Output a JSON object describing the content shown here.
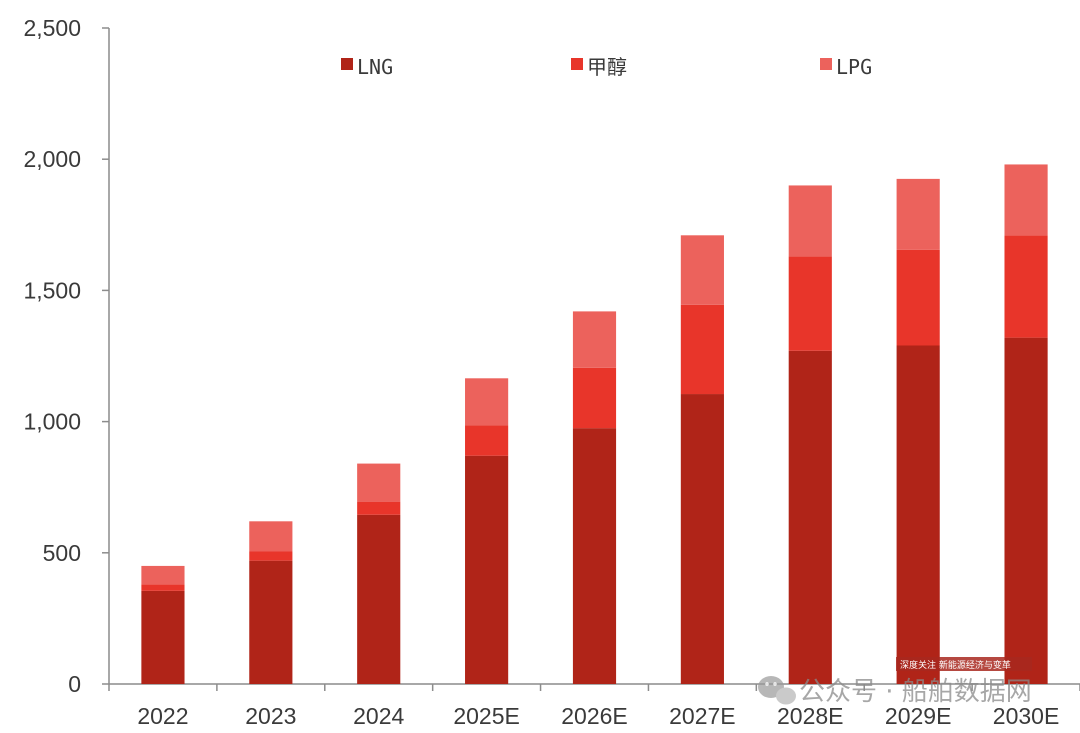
{
  "chart_data": {
    "type": "bar",
    "stacked": true,
    "title": "",
    "xlabel": "",
    "ylabel": "",
    "ylim": [
      0,
      2500
    ],
    "yticks": [
      0,
      500,
      1000,
      1500,
      2000,
      2500
    ],
    "ytick_labels": [
      "0",
      "500",
      "1,000",
      "1,500",
      "2,000",
      "2,500"
    ],
    "categories": [
      "2022",
      "2023",
      "2024",
      "2025E",
      "2026E",
      "2027E",
      "2028E",
      "2029E",
      "2030E"
    ],
    "series": [
      {
        "name": "LNG",
        "color": "#b02418",
        "values": [
          355,
          470,
          645,
          870,
          975,
          1105,
          1270,
          1290,
          1320
        ]
      },
      {
        "name": "甲醇",
        "color": "#e8352a",
        "values": [
          25,
          35,
          50,
          115,
          230,
          340,
          360,
          365,
          390
        ]
      },
      {
        "name": "LPG",
        "color": "#ec625c",
        "values": [
          70,
          115,
          145,
          180,
          215,
          265,
          270,
          270,
          270
        ]
      }
    ],
    "legend_position": "top",
    "grid": false
  },
  "watermark": {
    "text": "公众号 · 船舶数据网",
    "badge": "深度关注 新能源经济与变革",
    "icon": "wechat-icon"
  }
}
